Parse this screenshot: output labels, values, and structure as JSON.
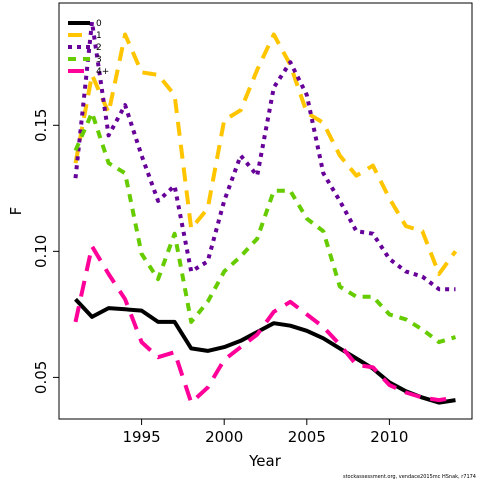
{
  "chart_data": {
    "type": "line",
    "xlabel": "Year",
    "ylabel": "F",
    "xlim": [
      1990,
      2015
    ],
    "ylim": [
      0.0335,
      0.1985
    ],
    "xticks": [
      1995,
      2000,
      2005,
      2010
    ],
    "yticks": [
      0.05,
      0.1,
      0.15
    ],
    "xtick_labels": [
      "1995",
      "2000",
      "2005",
      "2010"
    ],
    "ytick_labels": [
      "0.05",
      "0.10",
      "0.15"
    ],
    "legend_position": "top-left",
    "grid": false,
    "source_note": "stockassessment.org, vendace2015mc HSnak, r7174",
    "series": [
      {
        "name": "0",
        "color": "#000000",
        "dash": "solid",
        "x": [
          1991,
          1992,
          1993,
          1994,
          1995,
          1996,
          1997,
          1998,
          1999,
          2000,
          2001,
          2002,
          2003,
          2004,
          2005,
          2006,
          2007,
          2008,
          2009,
          2010,
          2011,
          2012,
          2013,
          2014
        ],
        "values": [
          0.081,
          0.074,
          0.0775,
          0.077,
          0.0765,
          0.072,
          0.072,
          0.0615,
          0.0605,
          0.062,
          0.0645,
          0.068,
          0.0715,
          0.0705,
          0.0685,
          0.0655,
          0.0615,
          0.0575,
          0.0535,
          0.048,
          0.0445,
          0.042,
          0.04,
          0.041
        ]
      },
      {
        "name": "1",
        "color": "#ffc500",
        "dash": "long",
        "x": [
          1991,
          1992,
          1993,
          1994,
          1995,
          1996,
          1997,
          1998,
          1999,
          2000,
          2001,
          2002,
          2003,
          2004,
          2005,
          2006,
          2007,
          2008,
          2009,
          2010,
          2011,
          2012,
          2013,
          2014
        ],
        "values": [
          0.135,
          0.17,
          0.155,
          0.186,
          0.171,
          0.17,
          0.162,
          0.109,
          0.117,
          0.152,
          0.156,
          0.172,
          0.186,
          0.174,
          0.155,
          0.151,
          0.138,
          0.13,
          0.134,
          0.121,
          0.11,
          0.108,
          0.091,
          0.1
        ]
      },
      {
        "name": "2",
        "color": "#660099",
        "dash": "dotted",
        "x": [
          1991,
          1992,
          1993,
          1994,
          1995,
          1996,
          1997,
          1998,
          1999,
          2000,
          2001,
          2002,
          2003,
          2004,
          2005,
          2006,
          2007,
          2008,
          2009,
          2010,
          2011,
          2012,
          2013,
          2014
        ],
        "values": [
          0.129,
          0.191,
          0.146,
          0.158,
          0.138,
          0.12,
          0.126,
          0.092,
          0.096,
          0.12,
          0.138,
          0.13,
          0.165,
          0.175,
          0.162,
          0.131,
          0.12,
          0.108,
          0.107,
          0.097,
          0.092,
          0.09,
          0.085,
          0.085
        ]
      },
      {
        "name": "3",
        "color": "#66cc00",
        "dash": "short",
        "x": [
          1991,
          1992,
          1993,
          1994,
          1995,
          1996,
          1997,
          1998,
          1999,
          2000,
          2001,
          2002,
          2003,
          2004,
          2005,
          2006,
          2007,
          2008,
          2009,
          2010,
          2011,
          2012,
          2013,
          2014
        ],
        "values": [
          0.14,
          0.155,
          0.135,
          0.131,
          0.099,
          0.089,
          0.107,
          0.072,
          0.08,
          0.092,
          0.098,
          0.105,
          0.124,
          0.124,
          0.113,
          0.108,
          0.086,
          0.082,
          0.082,
          0.075,
          0.073,
          0.069,
          0.064,
          0.066
        ]
      },
      {
        "name": "4+",
        "color": "#ff0099",
        "dash": "longer",
        "x": [
          1991,
          1992,
          1993,
          1994,
          1995,
          1996,
          1997,
          1998,
          1999,
          2000,
          2001,
          2002,
          2003,
          2004,
          2005,
          2006,
          2007,
          2008,
          2009,
          2010,
          2011,
          2012,
          2013,
          2014
        ],
        "values": [
          0.072,
          0.102,
          0.091,
          0.081,
          0.064,
          0.058,
          0.06,
          0.04,
          0.046,
          0.057,
          0.062,
          0.067,
          0.076,
          0.08,
          0.075,
          0.07,
          0.063,
          0.055,
          0.054,
          0.047,
          0.044,
          0.042,
          0.041,
          0.042
        ]
      }
    ]
  }
}
